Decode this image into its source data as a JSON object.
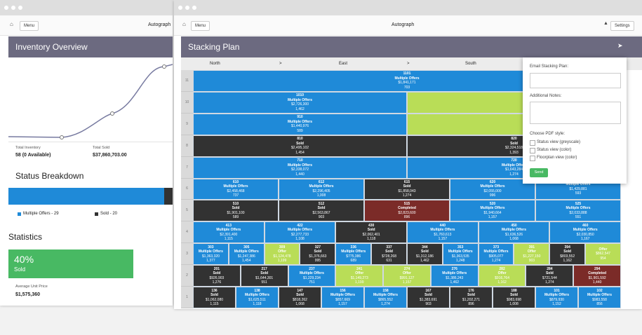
{
  "back_window": {
    "toolbar": {
      "menu": "Menu",
      "brand": "Autograph"
    },
    "header": "Inventory Overview",
    "stats": [
      {
        "label": "Total Inventory",
        "value": "58 (0 Available)"
      },
      {
        "label": "Total Sold",
        "value": "$37,860,703.00"
      }
    ],
    "status_heading": "Status Breakdown",
    "legend": [
      "Multiple Offers - 29",
      "Sold - 20"
    ],
    "statistics_heading": "Statistics",
    "sold_percent": "40%",
    "sold_label": "Sold",
    "average": {
      "label": "Average Unit Price",
      "value": "$1,575,360"
    }
  },
  "front_window": {
    "toolbar": {
      "menu": "Menu",
      "brand": "Autograph",
      "settings": "Settings"
    },
    "header": "Stacking Plan",
    "directions": [
      "North",
      ">",
      "East",
      ">",
      "South"
    ],
    "status_colors": {
      "Multiple Offers": "#1f8ad8",
      "Sold": "#323232",
      "Offer": "#b9dd57",
      "Completed": "#7b2b28"
    },
    "floors": [
      {
        "label": "11",
        "units": [
          {
            "number": "1101",
            "status": "Multiple Offers",
            "price": "$1,841,171",
            "size": "703"
          }
        ]
      },
      {
        "label": "10",
        "units": [
          {
            "number": "1010",
            "status": "Multiple Offers",
            "price": "$2,726,300",
            "size": "1,462"
          },
          {
            "color": "#b9dd57"
          }
        ]
      },
      {
        "label": "9",
        "units": [
          {
            "number": "910",
            "status": "Multiple Offers",
            "price": "$1,440,976",
            "size": "589"
          },
          {
            "color": "#b9dd57"
          }
        ]
      },
      {
        "label": "8",
        "units": [
          {
            "number": "810",
            "status": "Sold",
            "price": "$2,495,102",
            "size": "1,454"
          },
          {
            "number": "820",
            "status": "Sold",
            "price": "$2,324,518",
            "size": "1,393"
          }
        ]
      },
      {
        "label": "7",
        "units": [
          {
            "number": "710",
            "status": "Multiple Offers",
            "price": "$2,338,072",
            "size": "1,440"
          },
          {
            "number": "720",
            "status": "Multiple Offers",
            "price": "$1,643,284",
            "size": "1,274"
          }
        ]
      },
      {
        "label": "6",
        "units": [
          {
            "number": "610",
            "status": "Multiple Offers",
            "price": "$2,458,468",
            "size": "737"
          },
          {
            "number": "612",
            "status": "Multiple Offers",
            "price": "$2,296,405",
            "size": "1,008"
          },
          {
            "number": "615",
            "status": "Sold",
            "price": "$1,858,043",
            "size": "1,274"
          },
          {
            "number": "620",
            "status": "Multiple Offers",
            "price": "$2,055,000",
            "size": "996"
          },
          {
            "status": "Multiple Offers",
            "price": "$1,429,881",
            "size": "593"
          }
        ]
      },
      {
        "label": "5",
        "units": [
          {
            "number": "510",
            "status": "Sold",
            "price": "$1,901,100",
            "size": "589"
          },
          {
            "number": "512",
            "status": "Sold",
            "price": "$2,563,867",
            "size": "903"
          },
          {
            "number": "515",
            "status": "Completed",
            "price": "$2,823,600",
            "size": "896"
          },
          {
            "number": "520",
            "status": "Multiple Offers",
            "price": "$1,940,664",
            "size": "1,157"
          },
          {
            "number": "525",
            "status": "Multiple Offers",
            "price": "$2,033,888",
            "size": "551"
          }
        ]
      },
      {
        "label": "4",
        "units": [
          {
            "number": "413",
            "status": "Multiple Offers",
            "price": "$2,391,400",
            "size": "1,115"
          },
          {
            "number": "422",
            "status": "Multiple Offers",
            "price": "$2,277,733",
            "size": "1,108"
          },
          {
            "number": "430",
            "status": "Sold",
            "price": "$2,062,401",
            "size": "1,118"
          },
          {
            "number": "440",
            "status": "Multiple Offers",
            "price": "$1,760,613",
            "size": "1,157"
          },
          {
            "number": "450",
            "status": "Multiple Offers",
            "price": "$1,636,526",
            "size": "1,068"
          },
          {
            "number": "460",
            "status": "Multiple Offers",
            "price": "$2,030,850",
            "size": "1,167"
          }
        ]
      },
      {
        "label": "3",
        "units": [
          {
            "number": "303",
            "status": "Multiple Offers",
            "price": "$1,363,320",
            "size": "1,377"
          },
          {
            "number": "305",
            "status": "Multiple Offers",
            "price": "$1,247,386",
            "size": "1,454"
          },
          {
            "number": "309",
            "status": "Offer",
            "price": "$1,124,478",
            "size": "1,199"
          },
          {
            "number": "327",
            "status": "Sold",
            "price": "$1,376,663",
            "size": "995"
          },
          {
            "number": "336",
            "status": "Multiple Offers",
            "price": "$775,386",
            "size": "689"
          },
          {
            "number": "337",
            "status": "Sold",
            "price": "$728,268",
            "size": "631"
          },
          {
            "number": "344",
            "status": "Sold",
            "price": "$1,312,186",
            "size": "1,462"
          },
          {
            "number": "353",
            "status": "Multiple Offers",
            "price": "$1,363,535",
            "size": "1,248"
          },
          {
            "number": "373",
            "status": "Multiple Offers",
            "price": "$905,077",
            "size": "1,274"
          },
          {
            "number": "391",
            "status": "Offer",
            "price": "$1,227,150",
            "size": "903"
          },
          {
            "number": "394",
            "status": "Sold",
            "price": "$803,552",
            "size": "1,162"
          },
          {
            "status": "Offer",
            "price": "$862,547",
            "size": "954"
          }
        ]
      },
      {
        "label": "2",
        "units": [
          {
            "number": "201",
            "status": "Sold",
            "price": "$926,903",
            "size": "1,276"
          },
          {
            "number": "217",
            "status": "Sold",
            "price": "$1,644,301",
            "size": "551"
          },
          {
            "number": "237",
            "status": "Multiple Offers",
            "price": "$1,229,234",
            "size": "751"
          },
          {
            "number": "241",
            "status": "Offer",
            "price": "$1,149,273",
            "size": "1,199"
          },
          {
            "number": "274",
            "status": "Offer",
            "price": "$991,127",
            "size": "1,157"
          },
          {
            "number": "276",
            "status": "Multiple Offers",
            "price": "$1,386,243",
            "size": "1,462"
          },
          {
            "number": "282",
            "status": "Offer",
            "price": "$916,764",
            "size": "1,162"
          },
          {
            "number": "284",
            "status": "Sold",
            "price": "$721,544",
            "size": "1,274"
          },
          {
            "number": "294",
            "status": "Completed",
            "price": "$1,901,592",
            "size": "1,440"
          }
        ]
      },
      {
        "label": "1",
        "units": [
          {
            "number": "136",
            "status": "Sold",
            "price": "$1,062,080",
            "size": "1,115"
          },
          {
            "number": "138",
            "status": "Multiple Offers",
            "price": "$1,625,511",
            "size": "1,118"
          },
          {
            "number": "147",
            "status": "Sold",
            "price": "$818,262",
            "size": "1,068"
          },
          {
            "number": "156",
            "status": "Multiple Offers",
            "price": "$857,669",
            "size": "1,157"
          },
          {
            "number": "158",
            "status": "Multiple Offers",
            "price": "$865,552",
            "size": "1,274"
          },
          {
            "number": "167",
            "status": "Sold",
            "price": "$1,383,691",
            "size": "903"
          },
          {
            "number": "176",
            "status": "Sold",
            "price": "$1,202,271",
            "size": "896"
          },
          {
            "number": "188",
            "status": "Sold",
            "price": "$983,698",
            "size": "1,008"
          },
          {
            "number": "101",
            "status": "Multiple Offers",
            "price": "$879,930",
            "size": "1,152"
          },
          {
            "number": "102",
            "status": "Multiple Offers",
            "price": "$983,558",
            "size": "856"
          }
        ]
      }
    ],
    "email_panel": {
      "email_label": "Email Stacking Plan:",
      "notes_label": "Additional Notes:",
      "style_label": "Choose PDF style:",
      "options": [
        "Status view (greyscale)",
        "Status view (color)",
        "Floorplan view (color)"
      ],
      "send": "Send"
    }
  }
}
